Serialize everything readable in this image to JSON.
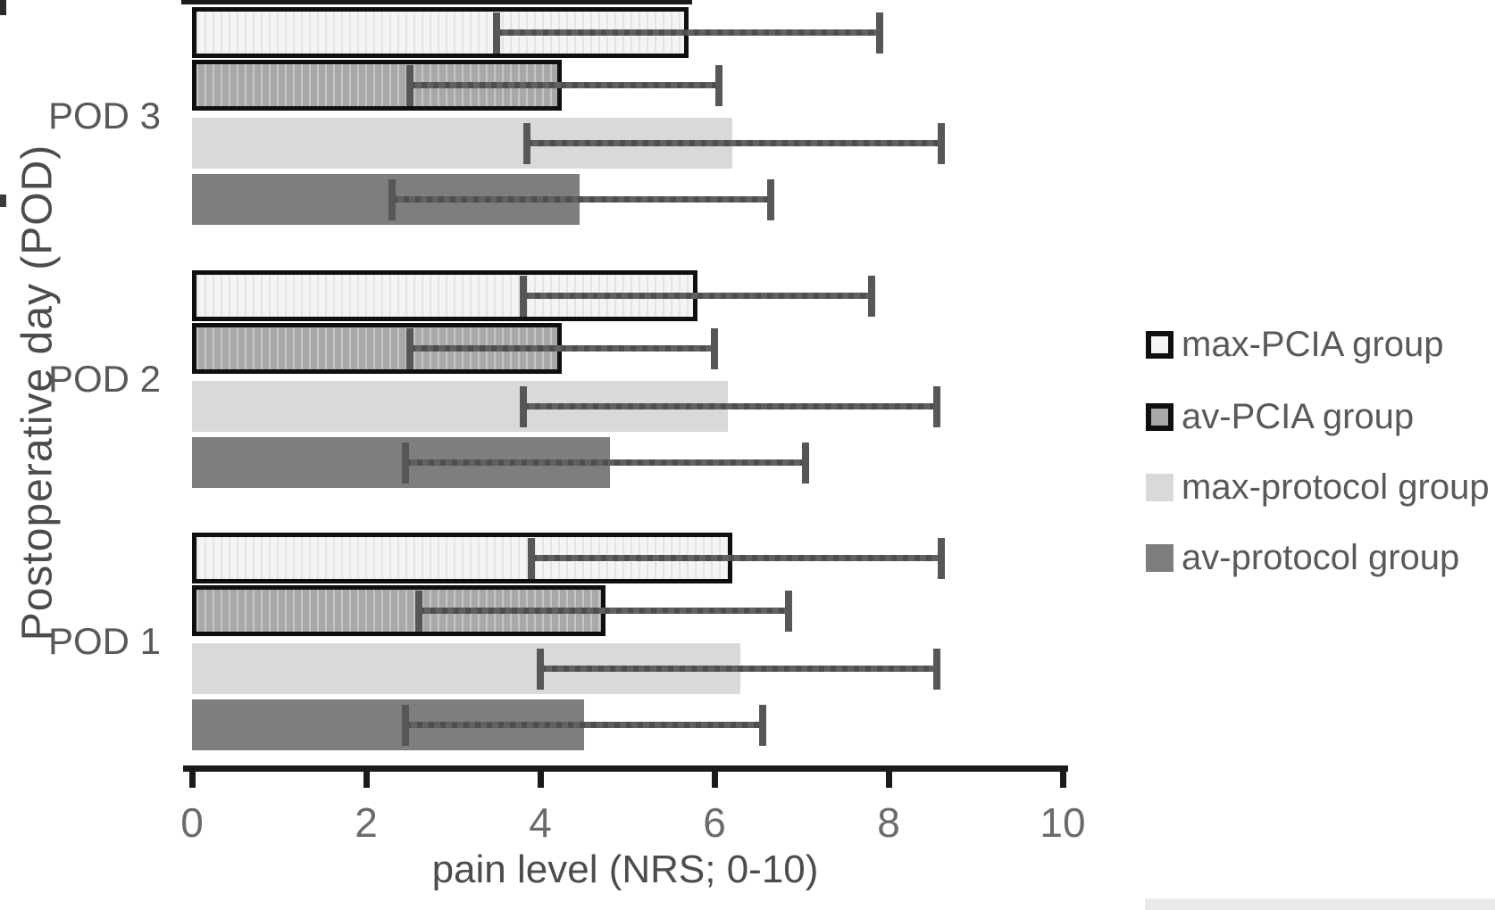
{
  "chart_data": {
    "type": "bar",
    "orientation": "horizontal",
    "title": "",
    "xlabel": "pain level (NRS; 0-10)",
    "ylabel": "Postoperative day (POD)",
    "xlim": [
      0,
      10
    ],
    "x_ticks": [
      0,
      2,
      4,
      6,
      8,
      10
    ],
    "grid": false,
    "legend_position": "right",
    "categories": [
      "POD 3",
      "POD 2",
      "POD 1"
    ],
    "category_order": "top-to-bottom",
    "series": [
      {
        "name": "max-PCIA group",
        "style_class": "max-pcia",
        "pattern": "light vertical stripes, thick black border",
        "values": [
          5.7,
          5.8,
          6.2
        ],
        "error_low": [
          3.5,
          3.8,
          3.9
        ],
        "error_high": [
          7.9,
          7.8,
          8.6
        ]
      },
      {
        "name": "av-PCIA group",
        "style_class": "av-pcia",
        "pattern": "gray vertical stripes, thick black border",
        "values": [
          4.25,
          4.25,
          4.75
        ],
        "error_low": [
          2.5,
          2.5,
          2.6
        ],
        "error_high": [
          6.05,
          6.0,
          6.85
        ]
      },
      {
        "name": "max-protocol group",
        "style_class": "max-protocol",
        "pattern": "flat light gray",
        "values": [
          6.2,
          6.15,
          6.3
        ],
        "error_low": [
          3.85,
          3.8,
          4.0
        ],
        "error_high": [
          8.6,
          8.55,
          8.55
        ]
      },
      {
        "name": "av-protocol group",
        "style_class": "av-protocol",
        "pattern": "flat dark gray",
        "values": [
          4.45,
          4.8,
          4.5
        ],
        "error_low": [
          2.3,
          2.45,
          2.45
        ],
        "error_high": [
          6.65,
          7.05,
          6.55
        ]
      }
    ],
    "colors": {
      "max_pcia_fill": "#f4f4f4",
      "max_pcia_stripe": "#e4e4e4",
      "av_pcia_fill": "#a8a8a8",
      "av_pcia_stripe": "#c6c6c6",
      "pcia_border": "#0f0f0f",
      "max_protocol_fill": "#d9d9d9",
      "av_protocol_fill": "#7e7e7e",
      "error_bar": "#575757",
      "axis": "#1a1a1a",
      "tick_label": "#6b6b6b",
      "text": "#595959",
      "background": "#ffffff"
    }
  }
}
